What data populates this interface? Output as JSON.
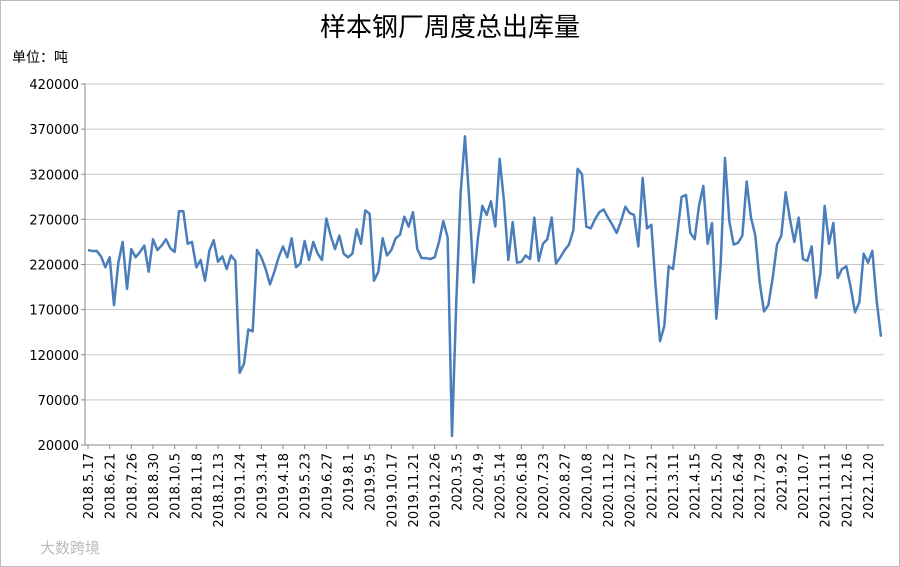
{
  "chart_data": {
    "type": "line",
    "title": "样本钢厂周度总出库量",
    "unit_label": "单位：吨",
    "watermark": "大数跨境",
    "ylim": [
      20000,
      420000
    ],
    "yticks": [
      20000,
      70000,
      120000,
      170000,
      220000,
      270000,
      320000,
      370000,
      420000
    ],
    "grid": true,
    "categories": [
      "2018.5.17",
      null,
      null,
      null,
      null,
      "2018.6.21",
      null,
      null,
      null,
      null,
      "2018.7.26",
      null,
      null,
      null,
      null,
      "2018.8.30",
      null,
      null,
      null,
      null,
      "2018.10.5",
      null,
      null,
      null,
      null,
      "2018.11.8",
      null,
      null,
      null,
      null,
      "2018.12.13",
      null,
      null,
      null,
      null,
      "2019.1.24",
      null,
      null,
      null,
      null,
      "2019.3.14",
      null,
      null,
      null,
      null,
      "2019.4.18",
      null,
      null,
      null,
      null,
      "2019.5.23",
      null,
      null,
      null,
      null,
      "2019.6.27",
      null,
      null,
      null,
      null,
      "2019.8.1",
      null,
      null,
      null,
      null,
      "2019.9.5",
      null,
      null,
      null,
      null,
      "2019.10.17",
      null,
      null,
      null,
      null,
      "2019.11.21",
      null,
      null,
      null,
      null,
      "2019.12.26",
      null,
      null,
      null,
      null,
      "2020.3.5",
      null,
      null,
      null,
      null,
      "2020.4.9",
      null,
      null,
      null,
      null,
      "2020.5.14",
      null,
      null,
      null,
      null,
      "2020.6.18",
      null,
      null,
      null,
      null,
      "2020.7.23",
      null,
      null,
      null,
      null,
      "2020.8.27",
      null,
      null,
      null,
      null,
      "2020.10.8",
      null,
      null,
      null,
      null,
      "2020.11.12",
      null,
      null,
      null,
      null,
      "2020.12.17",
      null,
      null,
      null,
      null,
      "2021.1.21",
      null,
      null,
      null,
      null,
      "2021.3.11",
      null,
      null,
      null,
      null,
      "2021.4.15",
      null,
      null,
      null,
      null,
      "2021.5.20",
      null,
      null,
      null,
      null,
      "2021.6.24",
      null,
      null,
      null,
      null,
      "2021.7.29",
      null,
      null,
      null,
      null,
      "2021.9.2",
      null,
      null,
      null,
      null,
      "2021.10.7",
      null,
      null,
      null,
      null,
      "2021.11.11",
      null,
      null,
      null,
      null,
      "2021.12.16",
      null,
      null,
      null,
      null,
      "2022.1.20",
      null,
      null,
      null
    ],
    "series": [
      {
        "color": "#4a7ebb",
        "values": [
          236000,
          235000,
          235000,
          229000,
          217000,
          228000,
          175000,
          222000,
          245000,
          193000,
          237000,
          228000,
          234000,
          241000,
          212000,
          248000,
          236000,
          241000,
          248000,
          238000,
          234000,
          279000,
          279000,
          243000,
          245000,
          217000,
          225000,
          202000,
          235000,
          247000,
          223000,
          229000,
          215000,
          230000,
          224000,
          100000,
          110000,
          148000,
          146000,
          236000,
          228000,
          215000,
          198000,
          212000,
          228000,
          240000,
          228000,
          249000,
          217000,
          221000,
          246000,
          225000,
          245000,
          232000,
          225000,
          271000,
          252000,
          237000,
          252000,
          232000,
          228000,
          232000,
          259000,
          243000,
          280000,
          276000,
          202000,
          212000,
          249000,
          230000,
          236000,
          249000,
          253000,
          273000,
          262000,
          278000,
          237000,
          227000,
          227000,
          226000,
          228000,
          245000,
          268000,
          250000,
          30000,
          180000,
          300000,
          362000,
          290000,
          200000,
          250000,
          285000,
          275000,
          290000,
          262000,
          337000,
          290000,
          225000,
          267000,
          222000,
          223000,
          230000,
          226000,
          272000,
          224000,
          243000,
          248000,
          272000,
          221000,
          228000,
          236000,
          242000,
          258000,
          326000,
          320000,
          262000,
          260000,
          270000,
          278000,
          281000,
          272000,
          264000,
          255000,
          268000,
          284000,
          277000,
          275000,
          240000,
          316000,
          260000,
          264000,
          195000,
          135000,
          152000,
          218000,
          215000,
          255000,
          295000,
          297000,
          255000,
          248000,
          285000,
          307000,
          243000,
          266000,
          160000,
          220000,
          338000,
          268000,
          242000,
          244000,
          252000,
          312000,
          272000,
          252000,
          200000,
          168000,
          175000,
          205000,
          242000,
          252000,
          300000,
          270000,
          245000,
          272000,
          226000,
          224000,
          240000,
          183000,
          210000,
          285000,
          243000,
          266000,
          205000,
          215000,
          218000,
          195000,
          167000,
          178000,
          232000,
          222000,
          235000,
          180000,
          140000
        ]
      }
    ]
  }
}
